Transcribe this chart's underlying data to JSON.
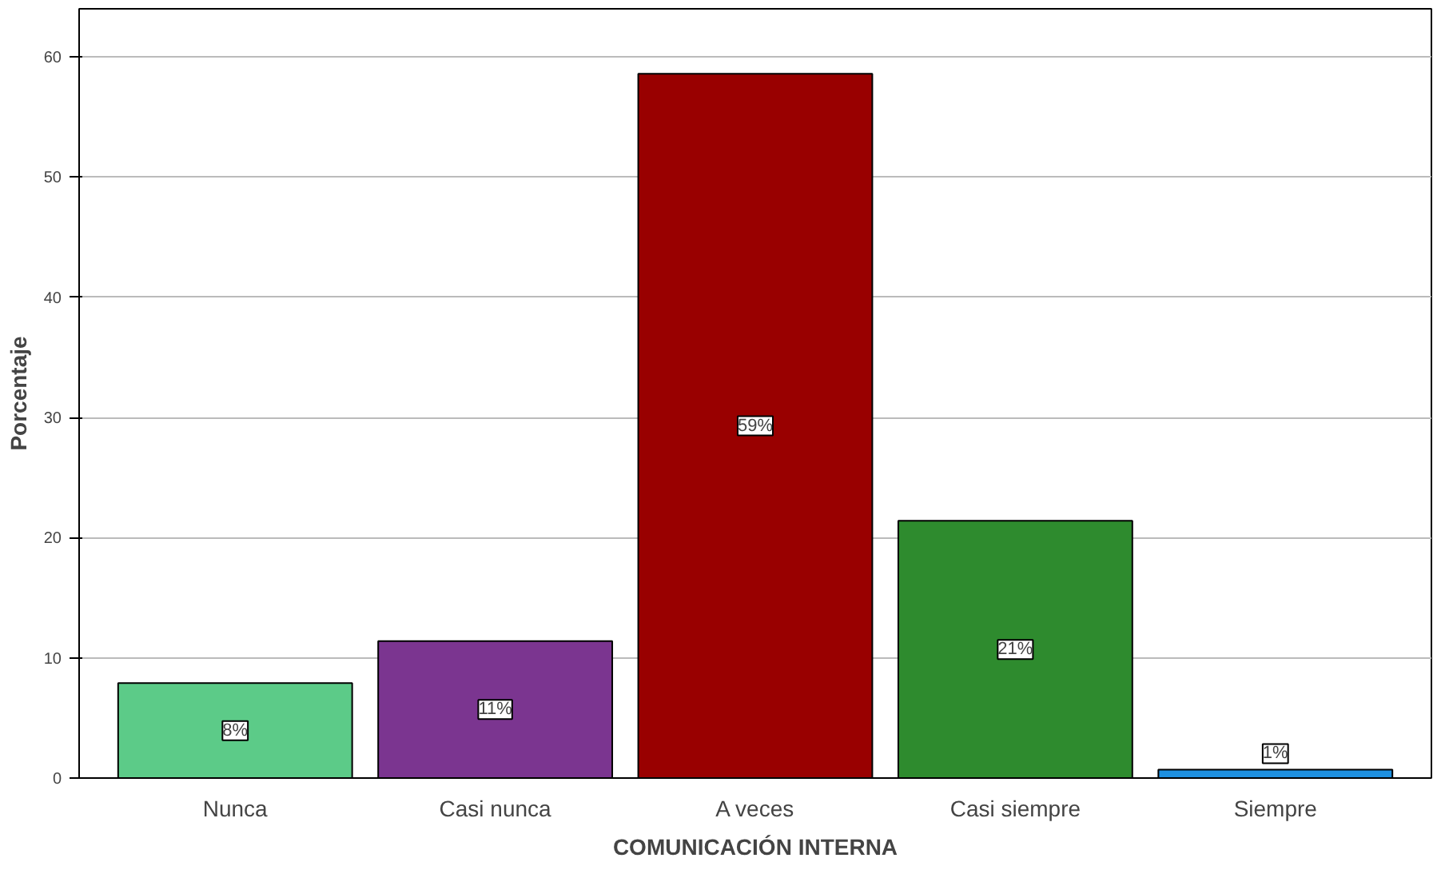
{
  "chart_data": {
    "type": "bar",
    "xlabel": "COMUNICACIÓN INTERNA",
    "ylabel": "Porcentaje",
    "categories": [
      "Nunca",
      "Casi nunca",
      "A veces",
      "Casi siempre",
      "Siempre"
    ],
    "values": [
      7.9,
      11.4,
      58.6,
      21.4,
      0.7
    ],
    "colors": [
      "#5ccb88",
      "#7b3590",
      "#990000",
      "#2e8b2e",
      "#1e90e0"
    ],
    "value_labels": [
      "8%",
      "11%",
      "59%",
      "21%",
      "1%"
    ],
    "ylim": [
      0,
      64
    ],
    "yticks": [
      0,
      10,
      20,
      30,
      40,
      50,
      60
    ],
    "grid": "y"
  }
}
